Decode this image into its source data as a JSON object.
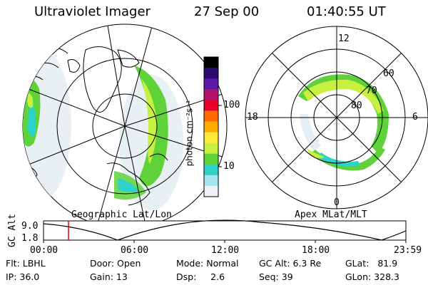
{
  "header": {
    "instrument": "Ultraviolet Imager",
    "date": "27 Sep 00",
    "time": "01:40:55 UT"
  },
  "left_panel": {
    "label": "Geographic Lat/Lon"
  },
  "right_panel": {
    "label": "Apex MLat/MLT",
    "mlt_labels": {
      "top": "12",
      "left": "18",
      "right": "6",
      "bottom": "0"
    },
    "lat_labels": [
      "60",
      "70",
      "80"
    ]
  },
  "colorbar": {
    "unit_label": "photon cm⁻²s⁻¹",
    "ticks": [
      "100",
      "10"
    ],
    "colors": [
      "#000000",
      "#2a0a6e",
      "#5a1aa8",
      "#b0126e",
      "#e8002a",
      "#ff6a00",
      "#ffae00",
      "#ffe93a",
      "#c8f040",
      "#5fd23a",
      "#2dd2c8",
      "#a6e4ef",
      "#f0f0f8"
    ]
  },
  "altitude_plot": {
    "ylabel": "GC Alt",
    "y_ticks": [
      "9.0",
      "1.8"
    ],
    "x_ticks": [
      "00:00",
      "06:00",
      "12:00",
      "18:00",
      "23:59"
    ],
    "current_time_marker_color": "#e00000"
  },
  "status": {
    "flt": "Flt: LBHL",
    "ip": "IP: 36.0",
    "door": "Door: Open",
    "gain": "Gain: 13",
    "mode": "Mode: Normal",
    "dsp": "Dsp:     2.6",
    "gc_alt": "GC Alt: 6.3 Re",
    "seq": "Seq: 39",
    "glat": "GLat:   81.9",
    "glon": "GLon: 328.3"
  }
}
